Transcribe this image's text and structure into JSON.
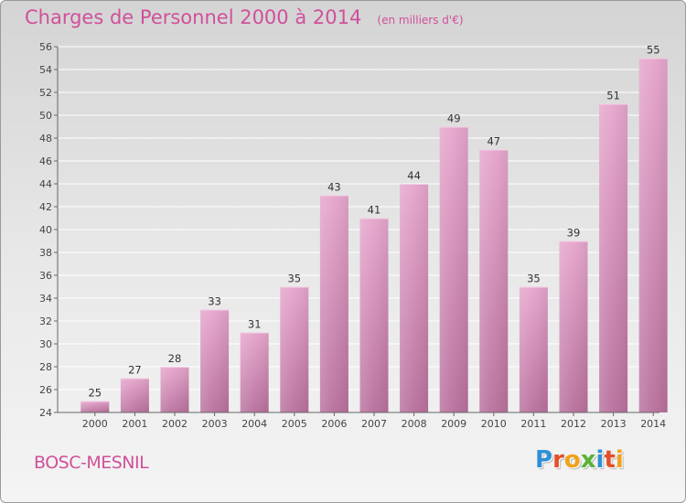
{
  "header": {
    "title": "Charges de Personnel 2000 à 2014",
    "subtitle": "(en milliers d'€)"
  },
  "footer": {
    "commune": "BOSC-MESNIL",
    "logo_letters": [
      "P",
      "r",
      "o",
      "x",
      "i",
      "t",
      "i"
    ],
    "logo_colors": [
      "#2f8fd6",
      "#e2502a",
      "#f0a21c",
      "#5bb336",
      "#2f8fd6",
      "#e2502a",
      "#f0a21c"
    ]
  },
  "colors": {
    "bar_light": "#e6a5cc",
    "bar_dark": "#b8709c",
    "accent": "#d0509a"
  },
  "chart_data": {
    "type": "bar",
    "categories": [
      "2000",
      "2001",
      "2002",
      "2003",
      "2004",
      "2005",
      "2006",
      "2007",
      "2008",
      "2009",
      "2010",
      "2011",
      "2012",
      "2013",
      "2014"
    ],
    "values": [
      25,
      27,
      28,
      33,
      31,
      35,
      43,
      41,
      44,
      49,
      47,
      35,
      39,
      51,
      55
    ],
    "title": "Charges de Personnel 2000 à 2014",
    "subtitle": "(en milliers d'€)",
    "xlabel": "",
    "ylabel": "",
    "ylim": [
      24,
      56
    ],
    "yticks": [
      24,
      26,
      28,
      30,
      32,
      34,
      36,
      38,
      40,
      42,
      44,
      46,
      48,
      50,
      52,
      54,
      56
    ],
    "grid": true
  }
}
